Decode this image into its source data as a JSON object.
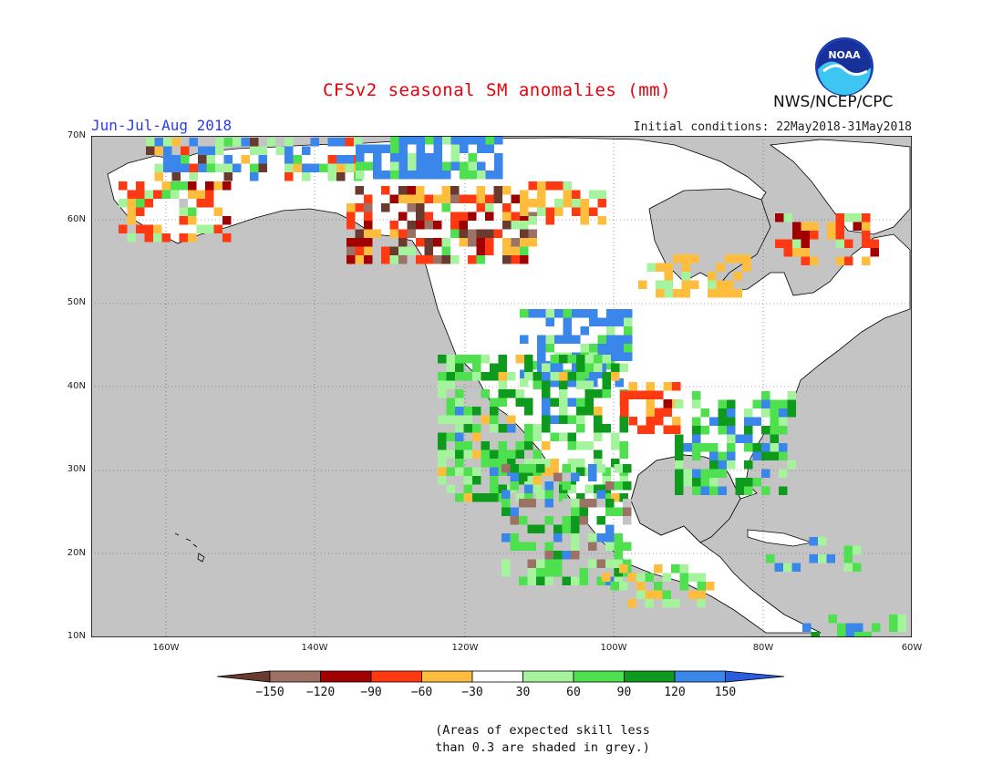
{
  "title": "CFSv2 seasonal SM anomalies (mm)",
  "season": "Jun-Jul-Aug 2018",
  "initial_conditions": "Initial conditions: 22May2018-31May2018",
  "organization": "NWS/NCEP/CPC",
  "logo_text": "NOAA",
  "map": {
    "region": "North America",
    "lat_labels": [
      "70N",
      "60N",
      "50N",
      "40N",
      "30N",
      "20N",
      "10N"
    ],
    "lon_labels": [
      "160W",
      "140W",
      "120W",
      "100W",
      "80W",
      "60W"
    ],
    "colors": {
      "ocean": "#c4c4c4",
      "land_neutral": "#ffffff",
      "low_skill": "#c4c4c4"
    }
  },
  "legend": {
    "labels": [
      "-150",
      "-120",
      "-90",
      "-60",
      "-30",
      "30",
      "60",
      "90",
      "120",
      "150"
    ],
    "bins": [
      {
        "range": "< -150",
        "color": "#6b3a2e"
      },
      {
        "range": "-150 to -120",
        "color": "#9c7266"
      },
      {
        "range": "-120 to -90",
        "color": "#a00000"
      },
      {
        "range": "-90 to -60",
        "color": "#ff3a12"
      },
      {
        "range": "-60 to -30",
        "color": "#ffbd3e"
      },
      {
        "range": "-30 to 30",
        "color": "#ffffff"
      },
      {
        "range": "30 to 60",
        "color": "#a6f39e"
      },
      {
        "range": "60 to 90",
        "color": "#4fe04f"
      },
      {
        "range": "90 to 120",
        "color": "#0e9a1c"
      },
      {
        "range": "120 to 150",
        "color": "#3a86ea"
      },
      {
        "range": "> 150",
        "color": "#2a5ce0"
      }
    ]
  },
  "note_line1": "(Areas of expected skill less",
  "note_line2": "than 0.3 are shaded in grey.)"
}
